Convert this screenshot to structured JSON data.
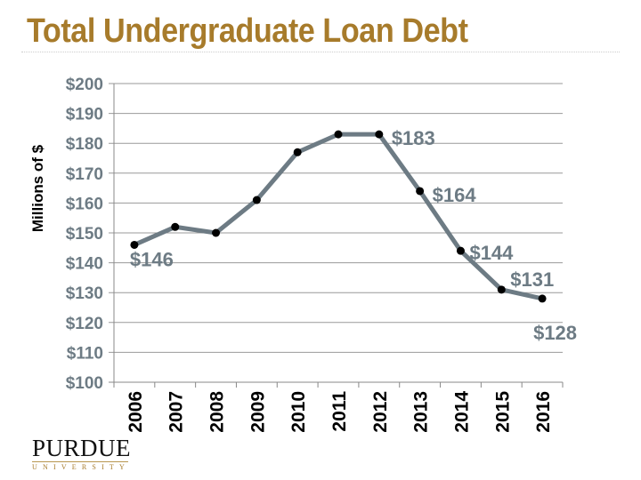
{
  "chart_data": {
    "type": "line",
    "title": "Total Undergraduate Loan Debt",
    "ylabel": "Millions of $",
    "xlabel": "",
    "categories": [
      "2006",
      "2007",
      "2008",
      "2009",
      "2010",
      "2011",
      "2012",
      "2013",
      "2014",
      "2015",
      "2016"
    ],
    "values": [
      146,
      152,
      150,
      161,
      177,
      183,
      183,
      164,
      144,
      131,
      128
    ],
    "ylim": [
      100,
      200
    ],
    "yticks": [
      "$100",
      "$110",
      "$120",
      "$130",
      "$140",
      "$150",
      "$160",
      "$170",
      "$180",
      "$190",
      "$200"
    ],
    "data_labels": [
      {
        "index": 0,
        "text": "$146"
      },
      {
        "index": 6,
        "text": "$183"
      },
      {
        "index": 7,
        "text": "$164"
      },
      {
        "index": 8,
        "text": "$144"
      },
      {
        "index": 9,
        "text": "$131"
      },
      {
        "index": 10,
        "text": "$128"
      }
    ],
    "grid": true,
    "line_color": "#6d7b84",
    "marker_color": "#000000",
    "title_color": "#a77b2b"
  },
  "logo": {
    "name": "PURDUE",
    "sub": "UNIVERSITY"
  }
}
